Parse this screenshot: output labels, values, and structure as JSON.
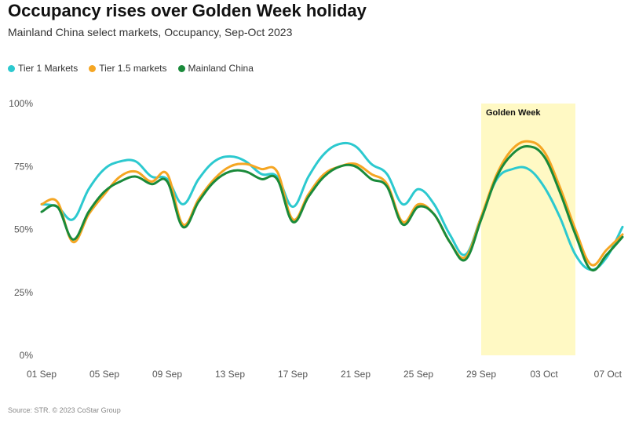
{
  "header": {
    "title": "Occupancy rises over Golden Week holiday",
    "subtitle": "Mainland China select markets, Occupancy, Sep-Oct 2023"
  },
  "footer": {
    "source": "Source: STR. © 2023 CoStar Group"
  },
  "chart_data": {
    "type": "line",
    "title": "Occupancy rises over Golden Week holiday",
    "subtitle": "Mainland China select markets, Occupancy, Sep-Oct 2023",
    "xlabel": "",
    "ylabel": "",
    "ylim": [
      0,
      100
    ],
    "y_ticks": [
      0,
      25,
      50,
      75,
      100
    ],
    "y_tick_labels": [
      "0%",
      "25%",
      "50%",
      "75%",
      "100%"
    ],
    "x_tick_labels": [
      "01 Sep",
      "05 Sep",
      "09 Sep",
      "13 Sep",
      "17 Sep",
      "21 Sep",
      "25 Sep",
      "29 Sep",
      "03 Oct",
      "07 Oct"
    ],
    "x_tick_positions": [
      0,
      4,
      8,
      12,
      16,
      20,
      24,
      28,
      32,
      36
    ],
    "x": [
      "01 Sep",
      "02 Sep",
      "03 Sep",
      "04 Sep",
      "05 Sep",
      "06 Sep",
      "07 Sep",
      "08 Sep",
      "09 Sep",
      "10 Sep",
      "11 Sep",
      "12 Sep",
      "13 Sep",
      "14 Sep",
      "15 Sep",
      "16 Sep",
      "17 Sep",
      "18 Sep",
      "19 Sep",
      "20 Sep",
      "21 Sep",
      "22 Sep",
      "23 Sep",
      "24 Sep",
      "25 Sep",
      "26 Sep",
      "27 Sep",
      "28 Sep",
      "29 Sep",
      "30 Sep",
      "01 Oct",
      "02 Oct",
      "03 Oct",
      "04 Oct",
      "05 Oct",
      "06 Oct",
      "07 Oct",
      "08 Oct"
    ],
    "grid": false,
    "legend_position": "top-left",
    "annotation": {
      "label": "Golden Week",
      "x_start": 28,
      "x_end": 34,
      "color": "#fff9c4"
    },
    "series": [
      {
        "name": "Tier 1 Markets",
        "color": "#2cc9cf",
        "values": [
          60,
          59,
          54,
          66,
          74,
          77,
          77,
          71,
          70,
          60,
          70,
          77,
          79,
          77,
          72,
          71,
          59,
          71,
          80,
          84,
          83,
          76,
          72,
          60,
          66,
          60,
          48,
          40,
          55,
          70,
          74,
          74,
          67,
          55,
          40,
          34,
          39,
          51
        ]
      },
      {
        "name": "Tier 1.5 markets",
        "color": "#f5a623",
        "values": [
          60,
          61,
          45,
          56,
          64,
          71,
          73,
          69,
          72,
          52,
          62,
          70,
          75,
          76,
          74,
          73,
          54,
          64,
          72,
          75,
          76,
          72,
          68,
          53,
          60,
          56,
          45,
          39,
          55,
          72,
          82,
          85,
          81,
          67,
          50,
          36,
          42,
          48
        ]
      },
      {
        "name": "Mainland China",
        "color": "#1a8a3a",
        "values": [
          57,
          59,
          46,
          57,
          65,
          69,
          71,
          68,
          69,
          51,
          61,
          69,
          73,
          73,
          70,
          70,
          53,
          63,
          71,
          75,
          75,
          70,
          67,
          52,
          59,
          56,
          45,
          38,
          54,
          71,
          80,
          83,
          79,
          65,
          48,
          34,
          40,
          47
        ]
      }
    ]
  }
}
